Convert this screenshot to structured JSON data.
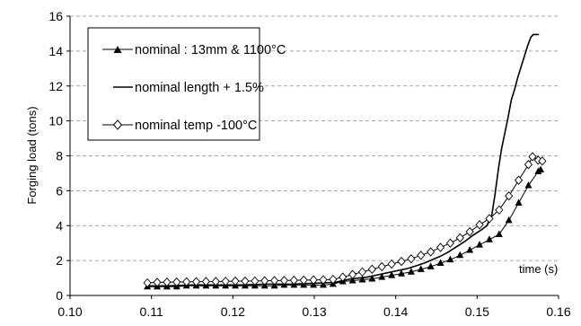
{
  "chart_data": {
    "type": "line",
    "title": "",
    "xlabel": "time (s)",
    "ylabel": "Forging load (tons)",
    "xlim": [
      0.1,
      0.16
    ],
    "ylim": [
      0,
      16
    ],
    "x_ticks": [
      "0.10",
      "0.11",
      "0.12",
      "0.13",
      "0.14",
      "0.15",
      "0.16"
    ],
    "y_ticks": [
      "0",
      "2",
      "4",
      "6",
      "8",
      "10",
      "12",
      "14",
      "16"
    ],
    "grid": "horizontal dashed",
    "legend_position": "top-left",
    "series": [
      {
        "name": "nominal : 13mm & 1100°C",
        "marker": "filled-triangle",
        "color": "#000000",
        "points": [
          [
            0.1095,
            0.5
          ],
          [
            0.1107,
            0.5
          ],
          [
            0.1119,
            0.5
          ],
          [
            0.1131,
            0.5
          ],
          [
            0.1143,
            0.55
          ],
          [
            0.1155,
            0.55
          ],
          [
            0.1167,
            0.55
          ],
          [
            0.1179,
            0.55
          ],
          [
            0.1191,
            0.55
          ],
          [
            0.1203,
            0.55
          ],
          [
            0.1215,
            0.55
          ],
          [
            0.1227,
            0.55
          ],
          [
            0.1239,
            0.55
          ],
          [
            0.1251,
            0.55
          ],
          [
            0.1263,
            0.6
          ],
          [
            0.1275,
            0.6
          ],
          [
            0.1287,
            0.6
          ],
          [
            0.1299,
            0.6
          ],
          [
            0.1311,
            0.6
          ],
          [
            0.1323,
            0.65
          ],
          [
            0.1335,
            0.8
          ],
          [
            0.1347,
            0.85
          ],
          [
            0.1359,
            0.9
          ],
          [
            0.1371,
            0.95
          ],
          [
            0.1383,
            1.05
          ],
          [
            0.1395,
            1.15
          ],
          [
            0.1407,
            1.25
          ],
          [
            0.1419,
            1.35
          ],
          [
            0.1431,
            1.5
          ],
          [
            0.1443,
            1.65
          ],
          [
            0.1455,
            1.85
          ],
          [
            0.1467,
            2.05
          ],
          [
            0.1479,
            2.3
          ],
          [
            0.1491,
            2.6
          ],
          [
            0.1503,
            2.9
          ],
          [
            0.1515,
            3.2
          ],
          [
            0.1527,
            3.5
          ],
          [
            0.1539,
            4.3
          ],
          [
            0.1551,
            5.3
          ],
          [
            0.1563,
            6.3
          ],
          [
            0.1575,
            7.1
          ],
          [
            0.1578,
            7.2
          ]
        ]
      },
      {
        "name": "nominal length + 1.5%",
        "marker": "none",
        "color": "#000000",
        "points": [
          [
            0.1095,
            0.55
          ],
          [
            0.112,
            0.55
          ],
          [
            0.115,
            0.6
          ],
          [
            0.118,
            0.6
          ],
          [
            0.121,
            0.6
          ],
          [
            0.124,
            0.65
          ],
          [
            0.127,
            0.65
          ],
          [
            0.13,
            0.7
          ],
          [
            0.1325,
            0.75
          ],
          [
            0.1335,
            0.85
          ],
          [
            0.1345,
            0.95
          ],
          [
            0.1355,
            1.0
          ],
          [
            0.1365,
            1.05
          ],
          [
            0.1375,
            1.15
          ],
          [
            0.1385,
            1.25
          ],
          [
            0.1395,
            1.35
          ],
          [
            0.1405,
            1.45
          ],
          [
            0.1415,
            1.55
          ],
          [
            0.1425,
            1.7
          ],
          [
            0.1435,
            1.85
          ],
          [
            0.1445,
            2.05
          ],
          [
            0.1455,
            2.25
          ],
          [
            0.1465,
            2.5
          ],
          [
            0.1475,
            2.8
          ],
          [
            0.1485,
            3.1
          ],
          [
            0.1495,
            3.45
          ],
          [
            0.1505,
            3.75
          ],
          [
            0.1512,
            4.0
          ],
          [
            0.1518,
            4.6
          ],
          [
            0.1522,
            5.8
          ],
          [
            0.1526,
            7.2
          ],
          [
            0.153,
            8.4
          ],
          [
            0.1534,
            9.3
          ],
          [
            0.1538,
            10.2
          ],
          [
            0.1542,
            11.2
          ],
          [
            0.1546,
            11.8
          ],
          [
            0.155,
            12.5
          ],
          [
            0.1554,
            13.1
          ],
          [
            0.1558,
            13.7
          ],
          [
            0.1562,
            14.3
          ],
          [
            0.1566,
            14.8
          ],
          [
            0.1569,
            14.95
          ],
          [
            0.1576,
            14.95
          ]
        ]
      },
      {
        "name": "nominal temp -100°C",
        "marker": "open-diamond",
        "color": "#000000",
        "points": [
          [
            0.1095,
            0.72
          ],
          [
            0.1107,
            0.75
          ],
          [
            0.1119,
            0.76
          ],
          [
            0.1131,
            0.77
          ],
          [
            0.1143,
            0.78
          ],
          [
            0.1155,
            0.79
          ],
          [
            0.1167,
            0.8
          ],
          [
            0.1179,
            0.8
          ],
          [
            0.1191,
            0.81
          ],
          [
            0.1203,
            0.82
          ],
          [
            0.1215,
            0.82
          ],
          [
            0.1227,
            0.83
          ],
          [
            0.1239,
            0.84
          ],
          [
            0.1251,
            0.85
          ],
          [
            0.1263,
            0.86
          ],
          [
            0.1275,
            0.87
          ],
          [
            0.1287,
            0.88
          ],
          [
            0.1299,
            0.89
          ],
          [
            0.1311,
            0.9
          ],
          [
            0.1323,
            0.92
          ],
          [
            0.1335,
            1.05
          ],
          [
            0.1347,
            1.2
          ],
          [
            0.1359,
            1.35
          ],
          [
            0.1371,
            1.5
          ],
          [
            0.1383,
            1.65
          ],
          [
            0.1395,
            1.8
          ],
          [
            0.1407,
            1.95
          ],
          [
            0.1419,
            2.1
          ],
          [
            0.1431,
            2.3
          ],
          [
            0.1443,
            2.5
          ],
          [
            0.1455,
            2.75
          ],
          [
            0.1467,
            3.0
          ],
          [
            0.1479,
            3.3
          ],
          [
            0.1491,
            3.65
          ],
          [
            0.1503,
            4.05
          ],
          [
            0.1515,
            4.4
          ],
          [
            0.1527,
            4.9
          ],
          [
            0.1539,
            5.7
          ],
          [
            0.1551,
            6.6
          ],
          [
            0.1563,
            7.5
          ],
          [
            0.1568,
            7.95
          ],
          [
            0.1575,
            7.75
          ],
          [
            0.158,
            7.7
          ]
        ]
      }
    ]
  }
}
